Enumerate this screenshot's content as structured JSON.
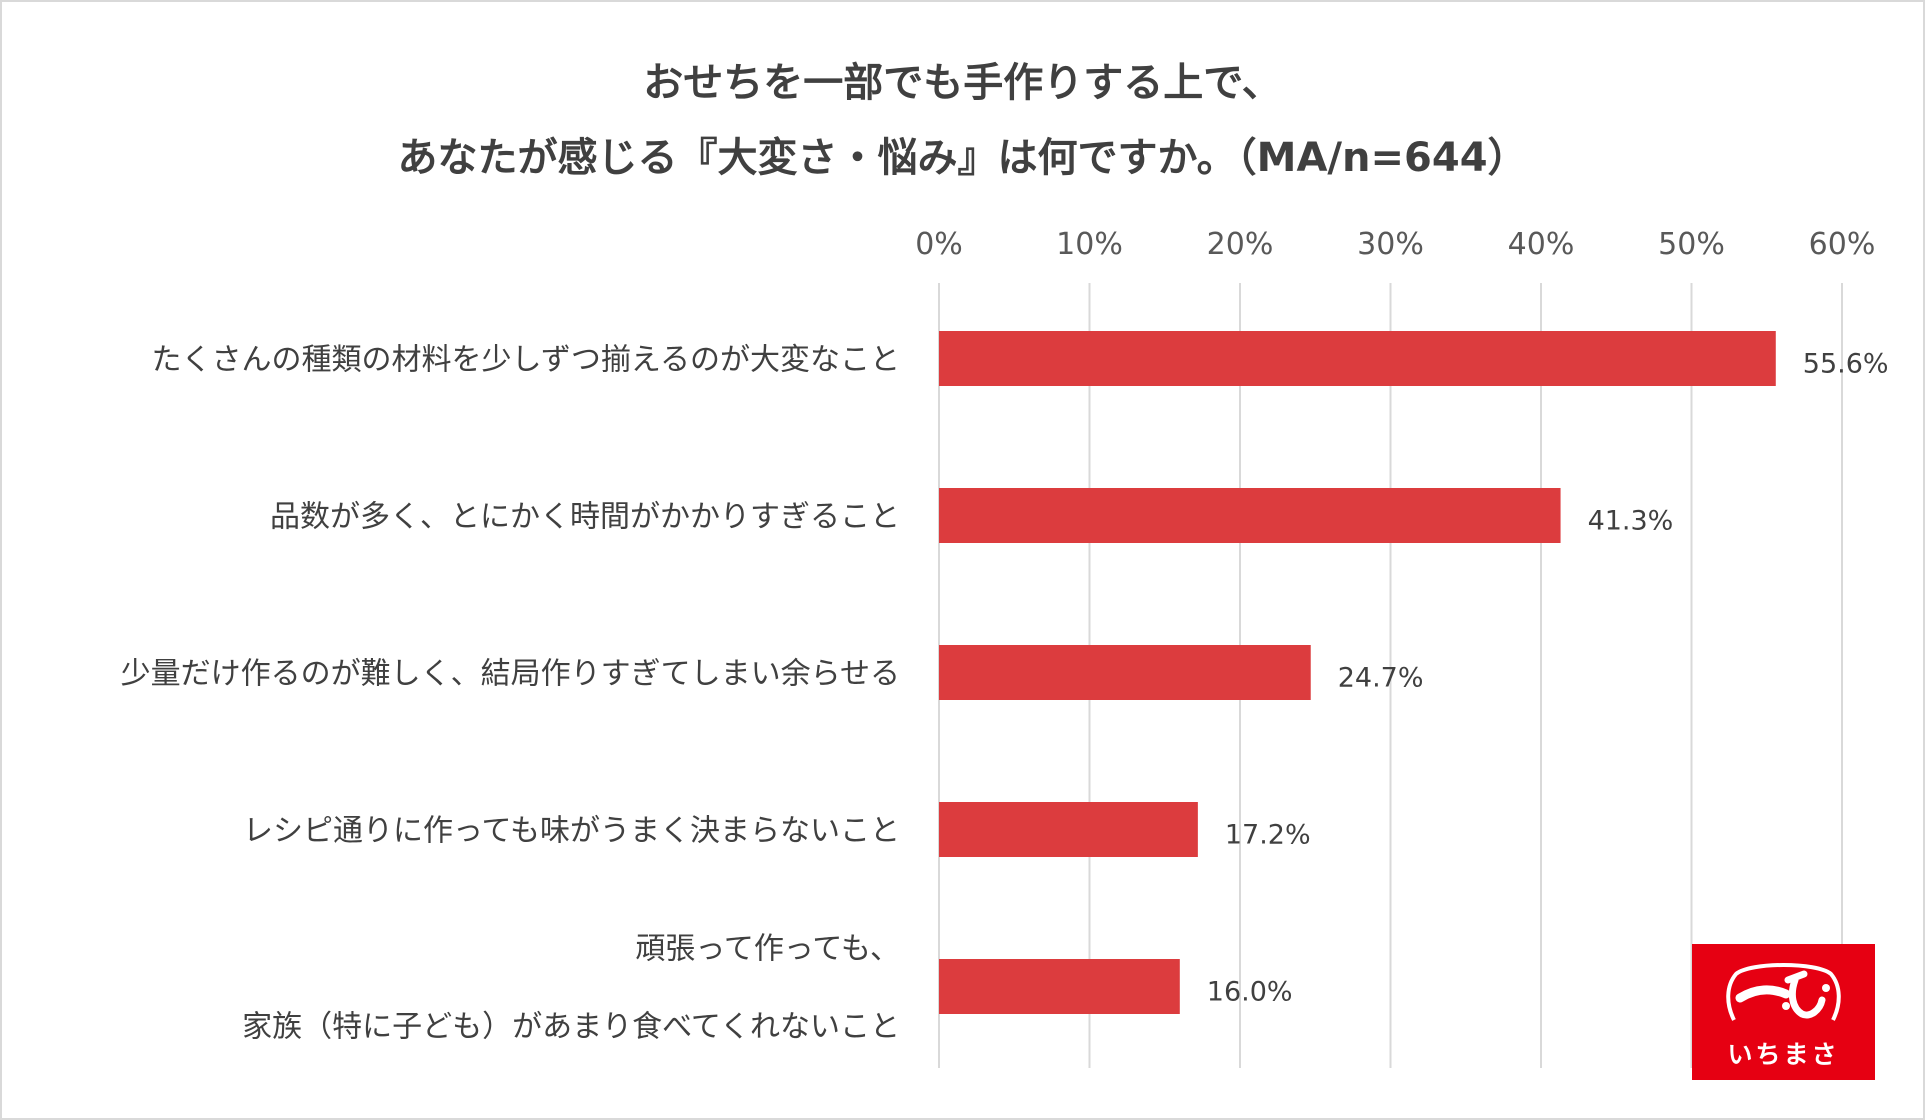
{
  "chart_data": {
    "type": "bar",
    "orientation": "horizontal",
    "title_lines": [
      "おせちを一部でも手作りする上で、",
      "あなたが感じる『大変さ・悩み』は何ですか。（MA/n=644）"
    ],
    "categories": [
      [
        "たくさんの種類の材料を少しずつ揃えるのが大変なこと"
      ],
      [
        "品数が多く、とにかく時間がかかりすぎること"
      ],
      [
        "少量だけ作るのが難しく、結局作りすぎてしまい余らせる"
      ],
      [
        "レシピ通りに作っても味がうまく決まらないこと"
      ],
      [
        "頑張って作っても、",
        "家族（特に子ども）があまり食べてくれないこと"
      ]
    ],
    "values": [
      55.6,
      41.3,
      24.7,
      17.2,
      16.0
    ],
    "value_labels": [
      "55.6%",
      "41.3%",
      "24.7%",
      "17.2%",
      "16.0%"
    ],
    "x_ticks": [
      "0%",
      "10%",
      "20%",
      "30%",
      "40%",
      "50%",
      "60%"
    ],
    "xlim": [
      0,
      60
    ],
    "axis_position": "top",
    "grid": true,
    "legend": "none",
    "bar_color": "#dc3c3e"
  },
  "logo": {
    "text": "いちまさ",
    "color": "#e60012"
  }
}
